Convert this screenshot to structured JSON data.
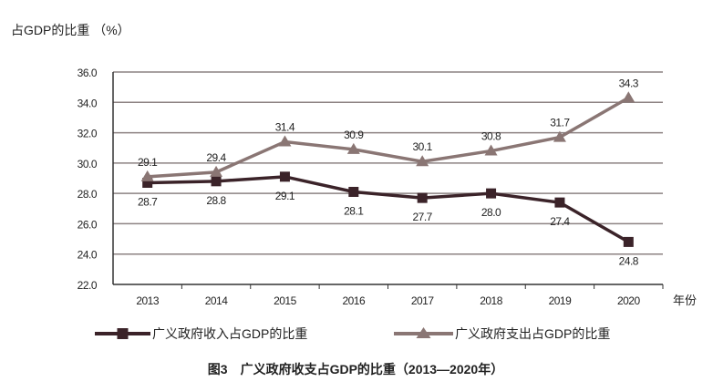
{
  "chart_data": {
    "type": "line",
    "title": "图3　广义政府收支占GDP的比重（2013—2020年）",
    "ylabel": "占GDP的比重 （%）",
    "xlabel": "年份",
    "categories": [
      "2013",
      "2014",
      "2015",
      "2016",
      "2017",
      "2018",
      "2019",
      "2020"
    ],
    "ylim": [
      22.0,
      36.0
    ],
    "yticks": [
      "22.0",
      "24.0",
      "26.0",
      "28.0",
      "30.0",
      "32.0",
      "34.0",
      "36.0"
    ],
    "grid": true,
    "legend_position": "bottom",
    "series": [
      {
        "name": "广义政府收入占GDP的比重",
        "marker": "square",
        "color": "#3b2329",
        "values": [
          28.7,
          28.8,
          29.1,
          28.1,
          27.7,
          28.0,
          27.4,
          24.8
        ],
        "labels": [
          "28.7",
          "28.8",
          "29.1",
          "28.1",
          "27.7",
          "28.0",
          "27.4",
          "24.8"
        ]
      },
      {
        "name": "广义政府支出占GDP的比重",
        "marker": "triangle",
        "color": "#8a7674",
        "values": [
          29.1,
          29.4,
          31.4,
          30.9,
          30.1,
          30.8,
          31.7,
          34.3
        ],
        "labels": [
          "29.1",
          "29.4",
          "31.4",
          "30.9",
          "30.1",
          "30.8",
          "31.7",
          "34.3"
        ]
      }
    ]
  }
}
